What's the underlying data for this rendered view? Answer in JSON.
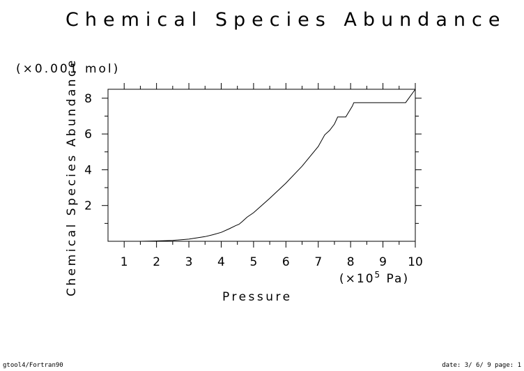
{
  "chart_data": {
    "type": "line",
    "title": "Chemical Species Abundance",
    "ylabel": "Chemical Species Abundance",
    "yunit": "(×0.001 mol)",
    "xlabel": "Pressure",
    "xunit_prefix": "(×10",
    "xunit_exp": "5",
    "xunit_suffix": " Pa)",
    "xlim": [
      0.5,
      10
    ],
    "ylim": [
      0,
      8.5
    ],
    "xticks": [
      1,
      2,
      3,
      4,
      5,
      6,
      7,
      8,
      9,
      10
    ],
    "yticks": [
      2,
      4,
      6,
      8
    ],
    "grid": false,
    "series": [
      {
        "x": [
          0.5,
          1.0,
          1.5,
          2.0,
          2.5,
          3.0,
          3.5,
          3.75,
          4.0,
          4.25,
          4.45,
          4.55,
          4.65,
          4.8,
          5.0,
          5.5,
          6.0,
          6.5,
          7.0,
          7.2,
          7.35,
          7.5,
          7.6,
          7.7,
          7.85,
          8.05,
          8.1,
          9.0,
          9.7,
          10.0
        ],
        "y": [
          0.0,
          0.0,
          0.0,
          0.02,
          0.05,
          0.12,
          0.26,
          0.37,
          0.5,
          0.7,
          0.88,
          0.95,
          1.1,
          1.35,
          1.6,
          2.4,
          3.25,
          4.2,
          5.3,
          5.95,
          6.2,
          6.55,
          6.95,
          6.95,
          6.95,
          7.55,
          7.75,
          7.75,
          7.75,
          8.5
        ]
      }
    ]
  },
  "footer": {
    "left": "gtool4/Fortran90",
    "right": "date: 3/ 6/ 9 page: 1"
  }
}
